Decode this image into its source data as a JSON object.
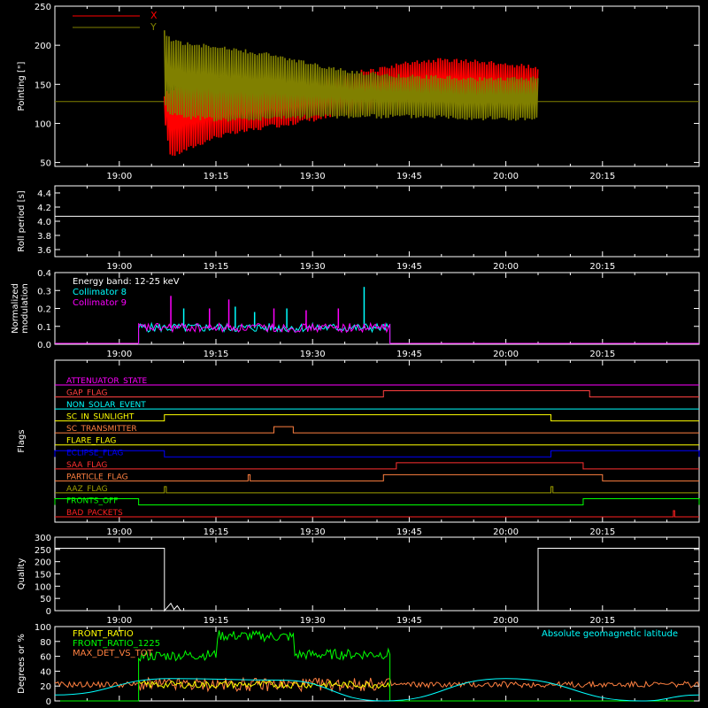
{
  "colors": {
    "background": "#000000",
    "axes": "#ffffff",
    "red": "#ff0000",
    "olive": "#808000",
    "cyan": "#00ffff",
    "magenta": "#ff00ff",
    "green": "#00ff00",
    "orange": "#ff8040",
    "yellow": "#ffff00",
    "blue": "#0000ff",
    "darkyellow": "#a0a000"
  },
  "time_axis": {
    "range": [
      "18:50",
      "20:30"
    ],
    "major_ticks": [
      "19:00",
      "19:15",
      "19:30",
      "19:45",
      "20:00",
      "20:15"
    ]
  },
  "chart_data": [
    {
      "id": "pointing",
      "type": "line",
      "ylabel": "Pointing [\"]",
      "ylim": [
        45,
        250
      ],
      "yticks": [
        50,
        100,
        150,
        200,
        250
      ],
      "legend": [
        {
          "name": "X",
          "color": "#ff0000"
        },
        {
          "name": "Y",
          "color": "#808000"
        }
      ],
      "series": [
        {
          "name": "X",
          "color": "#ff0000",
          "type": "envelope",
          "x": [
            "19:07",
            "19:08",
            "19:10",
            "19:15",
            "19:20",
            "19:25",
            "19:30",
            "19:35",
            "19:40",
            "19:45",
            "19:50",
            "19:55",
            "20:00",
            "20:05"
          ],
          "upper": [
            140,
            145,
            150,
            152,
            153,
            155,
            160,
            165,
            172,
            180,
            184,
            182,
            178,
            175
          ],
          "lower": [
            100,
            55,
            62,
            80,
            88,
            95,
            102,
            108,
            113,
            118,
            120,
            118,
            116,
            115
          ]
        },
        {
          "name": "Y",
          "color": "#808000",
          "type": "envelope",
          "x": [
            "19:07",
            "19:08",
            "19:10",
            "19:15",
            "19:20",
            "19:25",
            "19:30",
            "19:35",
            "19:40",
            "19:45",
            "19:50",
            "19:55",
            "20:00",
            "20:05"
          ],
          "upper": [
            220,
            210,
            205,
            200,
            195,
            188,
            178,
            170,
            166,
            163,
            162,
            160,
            160,
            160
          ],
          "lower": [
            120,
            110,
            106,
            102,
            102,
            104,
            106,
            106,
            106,
            106,
            106,
            104,
            103,
            102
          ]
        }
      ],
      "reference_line": 128
    },
    {
      "id": "roll-period",
      "type": "line",
      "ylabel": "Roll period [s]",
      "ylim": [
        3.5,
        4.5
      ],
      "yticks": [
        "3.6",
        "3.8",
        "4.0",
        "4.2",
        "4.4"
      ],
      "series": [
        {
          "name": "",
          "color": "#ffffff",
          "x": [
            "18:50",
            "20:30"
          ],
          "y": [
            4.07,
            4.07
          ]
        }
      ]
    },
    {
      "id": "modulation",
      "type": "line",
      "ylabel": "Normalized modulation",
      "ylim": [
        0,
        0.4
      ],
      "yticks": [
        "0.0",
        "0.1",
        "0.2",
        "0.3",
        "0.4"
      ],
      "annotation": "Energy band: 12-25 keV",
      "legend": [
        {
          "name": "Collimator 8",
          "color": "#00ffff"
        },
        {
          "name": "Collimator 9",
          "color": "#ff00ff"
        }
      ],
      "series": [
        {
          "name": "Collimator 8",
          "color": "#00ffff",
          "x_start": "19:03",
          "x_end": "19:42",
          "typical": 0.09,
          "spikes": [
            [
              "19:10",
              0.2
            ],
            [
              "19:18",
              0.21
            ],
            [
              "19:21",
              0.18
            ],
            [
              "19:26",
              0.2
            ],
            [
              "19:38",
              0.32
            ]
          ]
        },
        {
          "name": "Collimator 9",
          "color": "#ff00ff",
          "x_start": "19:03",
          "x_end": "19:42",
          "typical": 0.09,
          "spikes": [
            [
              "19:08",
              0.27
            ],
            [
              "19:14",
              0.2
            ],
            [
              "19:17",
              0.25
            ],
            [
              "19:24",
              0.2
            ],
            [
              "19:29",
              0.19
            ],
            [
              "19:34",
              0.2
            ]
          ]
        }
      ]
    },
    {
      "id": "flags",
      "type": "line",
      "ylabel": "Flags",
      "series": [
        {
          "name": "ATTENUATOR_STATE",
          "color": "#ff00ff",
          "segments": []
        },
        {
          "name": "GAP_FLAG",
          "color": "#ff4040",
          "segments": [
            [
              "19:41",
              "20:13"
            ]
          ]
        },
        {
          "name": "NON_SOLAR_EVENT",
          "color": "#00ffff",
          "segments": []
        },
        {
          "name": "SC_IN_SUNLIGHT",
          "color": "#ffff00",
          "segments": [
            [
              "19:07",
              "20:07"
            ]
          ]
        },
        {
          "name": "SC_TRANSMITTER",
          "color": "#ff8040",
          "segments": [
            [
              "19:24",
              "19:27"
            ]
          ]
        },
        {
          "name": "FLARE_FLAG",
          "color": "#ffff00",
          "segments": []
        },
        {
          "name": "ECLIPSE_FLAG",
          "color": "#0000ff",
          "segments": [
            [
              "18:50",
              "19:07"
            ],
            [
              "20:07",
              "20:30"
            ]
          ]
        },
        {
          "name": "SAA_FLAG",
          "color": "#ff3030",
          "segments": [
            [
              "19:43",
              "20:12"
            ]
          ]
        },
        {
          "name": "PARTICLE_FLAG",
          "color": "#ff8040",
          "segments": [
            [
              "19:20",
              "19:20.3"
            ],
            [
              "19:41",
              "20:15"
            ]
          ]
        },
        {
          "name": "AAZ_FLAG",
          "color": "#a0a000",
          "segments": [
            [
              "19:07",
              "19:07.3"
            ],
            [
              "20:07",
              "20:07.3"
            ]
          ]
        },
        {
          "name": "FRONTS_OFF",
          "color": "#00ff00",
          "segments": [
            [
              "18:50",
              "19:03"
            ],
            [
              "20:12",
              "20:30"
            ]
          ]
        },
        {
          "name": "BAD_PACKETS",
          "color": "#ff2020",
          "segments": [
            [
              "20:26",
              "20:26.2"
            ]
          ]
        }
      ]
    },
    {
      "id": "quality",
      "type": "line",
      "ylabel": "Quality",
      "ylim": [
        0,
        300
      ],
      "yticks": [
        0,
        50,
        100,
        150,
        200,
        250,
        300
      ],
      "series": [
        {
          "name": "",
          "color": "#ffffff",
          "x": [
            "18:50",
            "19:07",
            "19:07",
            "19:08",
            "19:08.5",
            "19:09",
            "19:09.5",
            "20:05",
            "20:05",
            "20:30"
          ],
          "y": [
            255,
            255,
            0,
            30,
            5,
            20,
            0,
            0,
            255,
            255
          ]
        }
      ]
    },
    {
      "id": "geomagnetic",
      "type": "line",
      "ylabel": "Degrees or %",
      "ylim": [
        0,
        100
      ],
      "yticks": [
        0,
        20,
        40,
        60,
        80,
        100
      ],
      "annotation": "Absolute geomagnetic latitude",
      "legend": [
        {
          "name": "FRONT_RATIO",
          "color": "#ffff00"
        },
        {
          "name": "FRONT_RATIO_1225",
          "color": "#00ff00"
        },
        {
          "name": "MAX_DET_VS_TOT",
          "color": "#ff8040"
        }
      ],
      "series": [
        {
          "name": "Absolute geomagnetic latitude",
          "color": "#00ffff",
          "x": [
            "18:50",
            "19:08",
            "19:25",
            "19:41",
            "20:00",
            "20:21",
            "20:30"
          ],
          "y": [
            8,
            30,
            28,
            0,
            30,
            0,
            8
          ]
        },
        {
          "name": "FRONT_RATIO",
          "color": "#ffff00",
          "x_start": "19:03",
          "x_end": "19:42",
          "typical": 22
        },
        {
          "name": "FRONT_RATIO_1225",
          "color": "#00ff00",
          "x": [
            "19:03",
            "19:15",
            "19:15.01",
            "19:27",
            "19:27.01",
            "19:42"
          ],
          "y": [
            60,
            62,
            88,
            86,
            62,
            63
          ]
        },
        {
          "name": "MAX_DET_VS_TOT",
          "color": "#ff8040",
          "x_start": "18:50",
          "x_end": "20:30",
          "typical": 22
        }
      ]
    }
  ]
}
